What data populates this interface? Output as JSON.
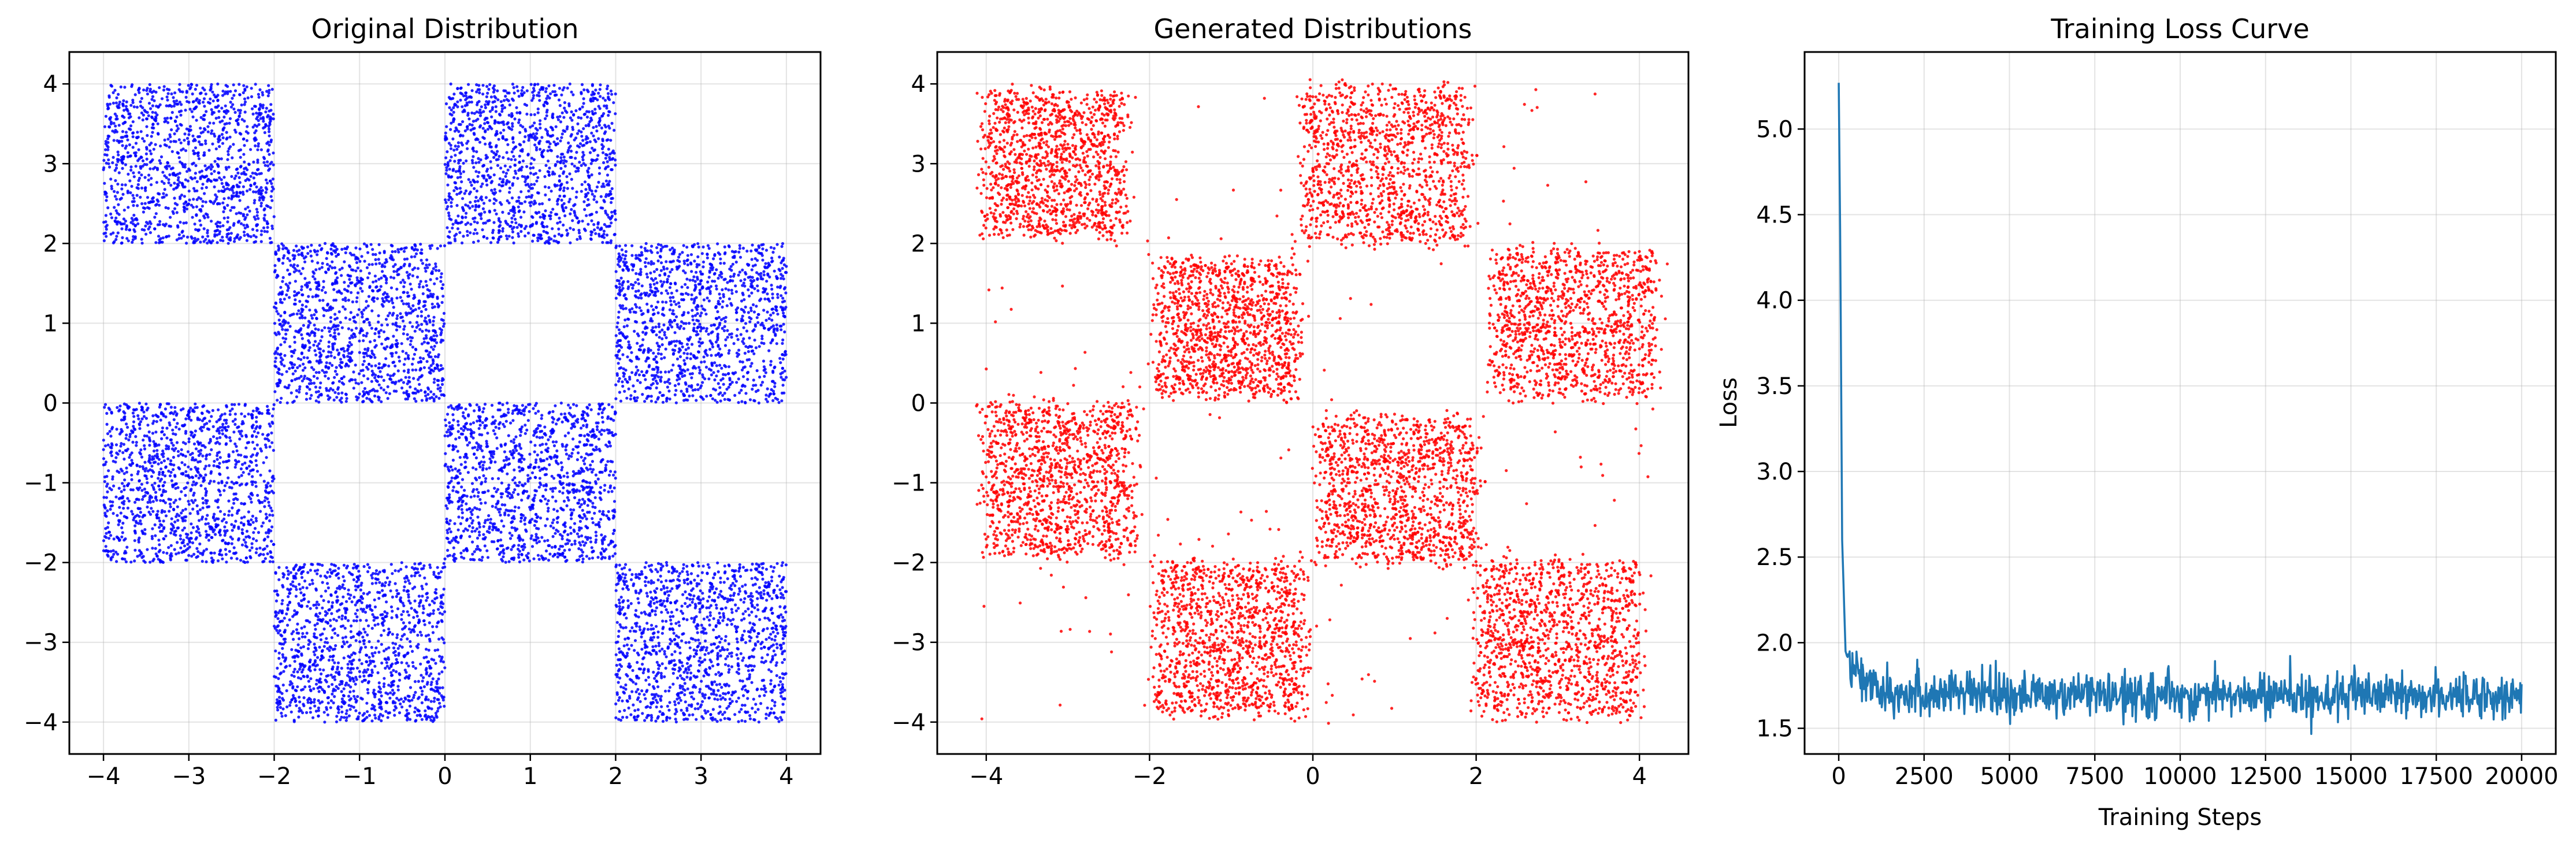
{
  "chart_data": [
    {
      "type": "scatter",
      "title": "Original Distribution",
      "xlabel": "",
      "ylabel": "",
      "xlim": [
        -4.4,
        4.4
      ],
      "ylim": [
        -4.4,
        4.4
      ],
      "xticks": [
        -4,
        -3,
        -2,
        -1,
        0,
        1,
        2,
        3,
        4
      ],
      "yticks": [
        -4,
        -3,
        -2,
        -1,
        0,
        1,
        2,
        3,
        4
      ],
      "xtick_labels": [
        "−4",
        "−3",
        "−2",
        "−1",
        "0",
        "1",
        "2",
        "3",
        "4"
      ],
      "ytick_labels": [
        "−4",
        "−3",
        "−2",
        "−1",
        "0",
        "1",
        "2",
        "3",
        "4"
      ],
      "grid": true,
      "color": "#0000ff",
      "occupied_squares": [
        {
          "x": [
            -4,
            -2
          ],
          "y": [
            2,
            4
          ]
        },
        {
          "x": [
            0,
            2
          ],
          "y": [
            2,
            4
          ]
        },
        {
          "x": [
            -2,
            0
          ],
          "y": [
            0,
            2
          ]
        },
        {
          "x": [
            2,
            4
          ],
          "y": [
            0,
            2
          ]
        },
        {
          "x": [
            -4,
            -2
          ],
          "y": [
            -2,
            0
          ]
        },
        {
          "x": [
            0,
            2
          ],
          "y": [
            -2,
            0
          ]
        },
        {
          "x": [
            -2,
            0
          ],
          "y": [
            -4,
            -2
          ]
        },
        {
          "x": [
            2,
            4
          ],
          "y": [
            -4,
            -2
          ]
        }
      ]
    },
    {
      "type": "scatter",
      "title": "Generated Distributions",
      "xlabel": "",
      "ylabel": "",
      "xlim": [
        -4.6,
        4.6
      ],
      "ylim": [
        -4.4,
        4.4
      ],
      "xticks": [
        -4,
        -2,
        0,
        2,
        4
      ],
      "yticks": [
        -4,
        -3,
        -2,
        -1,
        0,
        1,
        2,
        3,
        4
      ],
      "xtick_labels": [
        "−4",
        "−2",
        "0",
        "2",
        "4"
      ],
      "ytick_labels": [
        "−4",
        "−3",
        "−2",
        "−1",
        "0",
        "1",
        "2",
        "3",
        "4"
      ],
      "grid": true,
      "color": "#ff0000",
      "clusters": [
        {
          "x": [
            -4.0,
            -2.3
          ],
          "y": [
            2.1,
            3.9
          ]
        },
        {
          "x": [
            -0.1,
            1.9
          ],
          "y": [
            2.0,
            3.95
          ]
        },
        {
          "x": [
            -1.9,
            -0.2
          ],
          "y": [
            0.1,
            1.8
          ]
        },
        {
          "x": [
            2.2,
            4.2
          ],
          "y": [
            0.1,
            1.9
          ]
        },
        {
          "x": [
            -4.0,
            -2.2
          ],
          "y": [
            -1.9,
            0.0
          ]
        },
        {
          "x": [
            0.1,
            2.0
          ],
          "y": [
            -2.0,
            -0.2
          ]
        },
        {
          "x": [
            -1.9,
            -0.1
          ],
          "y": [
            -3.9,
            -2.0
          ]
        },
        {
          "x": [
            2.0,
            4.0
          ],
          "y": [
            -3.9,
            -2.0
          ]
        }
      ]
    },
    {
      "type": "line",
      "title": "Training Loss Curve",
      "xlabel": "Training Steps",
      "ylabel": "Loss",
      "xlim": [
        -1000,
        21000
      ],
      "ylim": [
        1.35,
        5.45
      ],
      "xticks": [
        0,
        2500,
        5000,
        7500,
        10000,
        12500,
        15000,
        17500,
        20000
      ],
      "yticks": [
        1.5,
        2.0,
        2.5,
        3.0,
        3.5,
        4.0,
        4.5,
        5.0
      ],
      "xtick_labels": [
        "0",
        "2500",
        "5000",
        "7500",
        "10000",
        "12500",
        "15000",
        "17500",
        "20000"
      ],
      "ytick_labels": [
        "1.5",
        "2.0",
        "2.5",
        "3.0",
        "3.5",
        "4.0",
        "4.5",
        "5.0"
      ],
      "grid": true,
      "color": "#1f77b4",
      "series": [
        {
          "x": [
            0,
            50,
            100,
            200,
            300,
            500,
            700,
            1000,
            1500,
            2000,
            3000,
            5000,
            7500,
            10000,
            12500,
            15000,
            17500,
            20000
          ],
          "y": [
            5.27,
            4.2,
            2.6,
            1.95,
            1.88,
            1.84,
            1.8,
            1.75,
            1.72,
            1.71,
            1.7,
            1.7,
            1.69,
            1.69,
            1.69,
            1.69,
            1.69,
            1.69
          ]
        }
      ]
    }
  ]
}
